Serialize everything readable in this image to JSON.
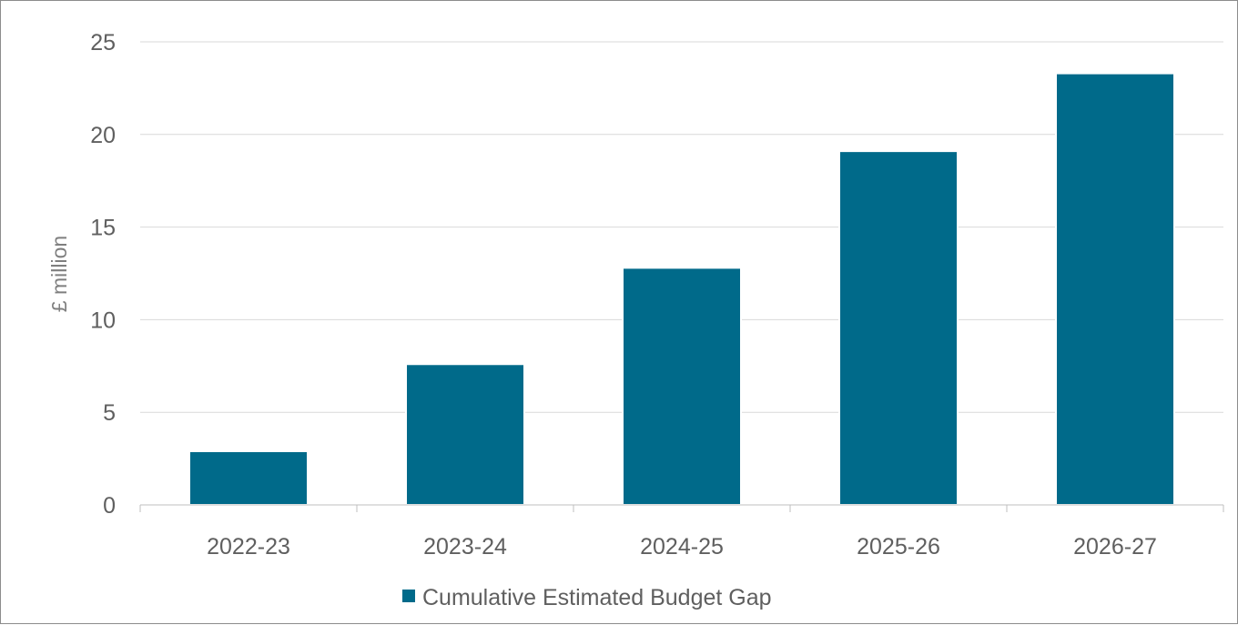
{
  "chart_data": {
    "type": "bar",
    "title": "",
    "xlabel": "",
    "ylabel": "£ million",
    "categories": [
      "2022-23",
      "2023-24",
      "2024-25",
      "2025-26",
      "2026-27"
    ],
    "series": [
      {
        "name": "Cumulative Estimated Budget Gap",
        "values": [
          2.9,
          7.6,
          12.8,
          19.1,
          23.3
        ],
        "color": "#006a8a"
      }
    ],
    "ylim": [
      0,
      25
    ],
    "yticks": [
      0,
      5,
      10,
      15,
      20,
      25
    ],
    "grid": true,
    "legend": "bottom-center"
  }
}
